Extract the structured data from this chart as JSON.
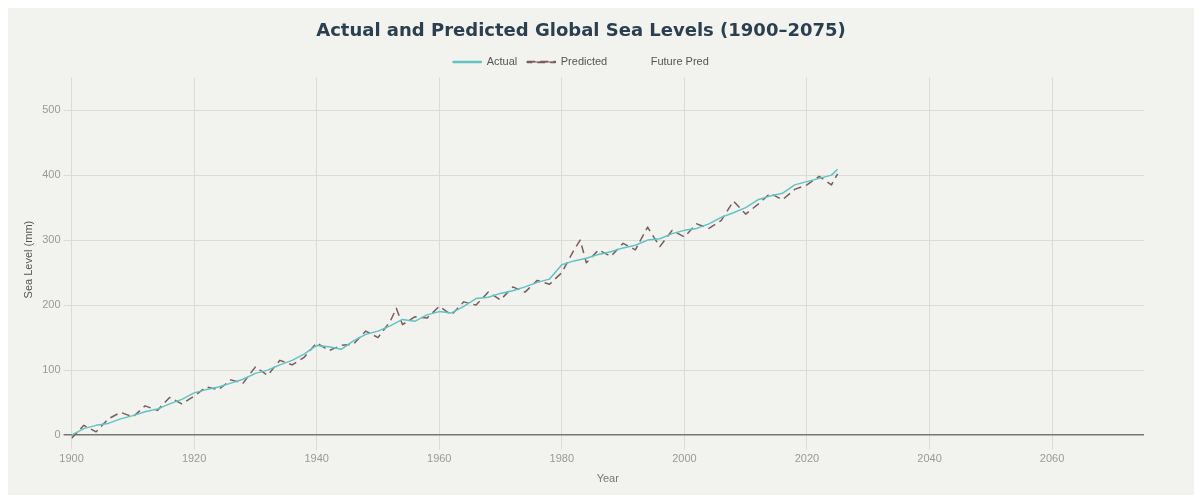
{
  "chart_data": {
    "type": "line",
    "title": "Actual and Predicted Global Sea Levels (1900–2075)",
    "xlabel": "Year",
    "ylabel": "Sea Level (mm)",
    "xlim": [
      1900,
      2075
    ],
    "xticks": [
      1900,
      1920,
      1940,
      1960,
      1980,
      2000,
      2020,
      2040,
      2060
    ],
    "ylim": [
      -10,
      550
    ],
    "yticks": [
      0,
      100,
      200,
      300,
      400,
      500
    ],
    "grid": true,
    "legend": "top",
    "marker": "none",
    "series": [
      {
        "name": "Actual",
        "color": "#5fc4c4",
        "line_style": "solid",
        "x": [
          1900,
          1902,
          1904,
          1906,
          1908,
          1910,
          1912,
          1914,
          1916,
          1918,
          1920,
          1922,
          1924,
          1926,
          1928,
          1930,
          1932,
          1934,
          1936,
          1938,
          1940,
          1942,
          1944,
          1946,
          1948,
          1950,
          1952,
          1954,
          1956,
          1958,
          1960,
          1962,
          1964,
          1966,
          1968,
          1970,
          1972,
          1974,
          1976,
          1978,
          1980,
          1982,
          1984,
          1986,
          1988,
          1990,
          1992,
          1994,
          1996,
          1998,
          2000,
          2002,
          2004,
          2006,
          2008,
          2010,
          2012,
          2014,
          2016,
          2018,
          2020,
          2022,
          2024,
          2025
        ],
        "values": [
          0,
          10,
          15,
          18,
          25,
          30,
          36,
          40,
          48,
          55,
          65,
          70,
          74,
          80,
          86,
          95,
          100,
          108,
          115,
          125,
          138,
          136,
          132,
          145,
          155,
          160,
          168,
          178,
          175,
          185,
          190,
          188,
          198,
          210,
          212,
          218,
          222,
          228,
          235,
          240,
          262,
          268,
          272,
          278,
          282,
          288,
          292,
          300,
          302,
          310,
          315,
          318,
          325,
          335,
          342,
          350,
          362,
          368,
          372,
          385,
          390,
          395,
          400,
          409
        ]
      },
      {
        "name": "Predicted",
        "color": "#7a5c5c",
        "line_style": "dashed",
        "x": [
          1900,
          1902,
          1904,
          1906,
          1908,
          1910,
          1912,
          1914,
          1916,
          1918,
          1920,
          1922,
          1924,
          1926,
          1928,
          1930,
          1932,
          1934,
          1936,
          1938,
          1940,
          1942,
          1944,
          1946,
          1948,
          1950,
          1952,
          1953,
          1954,
          1956,
          1958,
          1960,
          1962,
          1964,
          1966,
          1968,
          1970,
          1972,
          1974,
          1976,
          1978,
          1980,
          1982,
          1983,
          1984,
          1986,
          1988,
          1990,
          1992,
          1994,
          1996,
          1998,
          2000,
          2002,
          2004,
          2006,
          2008,
          2010,
          2012,
          2014,
          2016,
          2018,
          2020,
          2022,
          2024,
          2025
        ],
        "values": [
          -5,
          15,
          5,
          25,
          35,
          28,
          45,
          38,
          58,
          48,
          60,
          74,
          70,
          85,
          80,
          105,
          92,
          115,
          108,
          120,
          142,
          130,
          138,
          140,
          160,
          150,
          175,
          195,
          170,
          182,
          180,
          198,
          185,
          205,
          200,
          220,
          208,
          228,
          220,
          238,
          232,
          250,
          285,
          300,
          265,
          285,
          275,
          295,
          285,
          320,
          290,
          315,
          305,
          325,
          318,
          330,
          360,
          340,
          355,
          372,
          362,
          378,
          385,
          398,
          385,
          402
        ]
      },
      {
        "name": "Future Pred"
      }
    ]
  }
}
